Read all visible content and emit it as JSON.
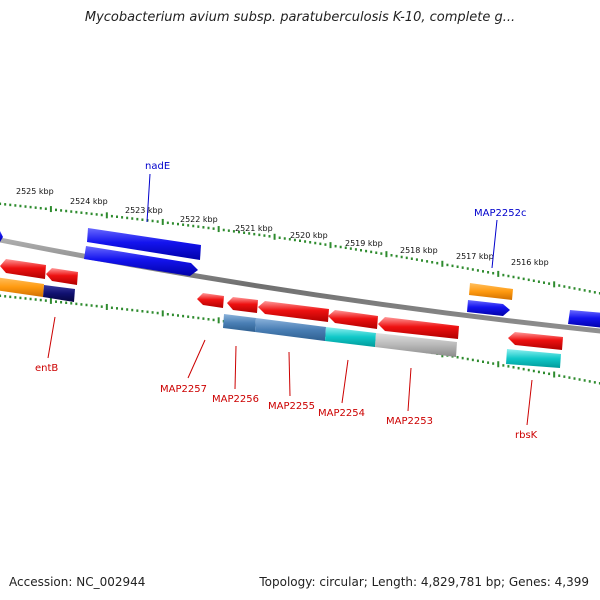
{
  "title": "Mycobacterium avium subsp. paratuberculosis K-10, complete g...",
  "footer": {
    "accession": "Accession: NC_002944",
    "topology": "Topology: circular; Length: 4,829,781 bp; Genes: 4,399"
  },
  "colors": {
    "backbone": "#808080",
    "tick_dots": "#2e8b2e",
    "label_red": "#cc0000",
    "label_blue": "#0000cc"
  },
  "scale_labels": [
    "2525 kbp",
    "2524 kbp",
    "2523 kbp",
    "2522 kbp",
    "2521 kbp",
    "2520 kbp",
    "2519 kbp",
    "2518 kbp",
    "2517 kbp",
    "2516 kbp"
  ],
  "gene_labels": {
    "nadE": "nadE",
    "MAP2252c": "MAP2252c",
    "entB": "entB",
    "MAP2257": "MAP2257",
    "MAP2256": "MAP2256",
    "MAP2255": "MAP2255",
    "MAP2254": "MAP2254",
    "MAP2253": "MAP2253",
    "rbsK": "rbsK"
  }
}
